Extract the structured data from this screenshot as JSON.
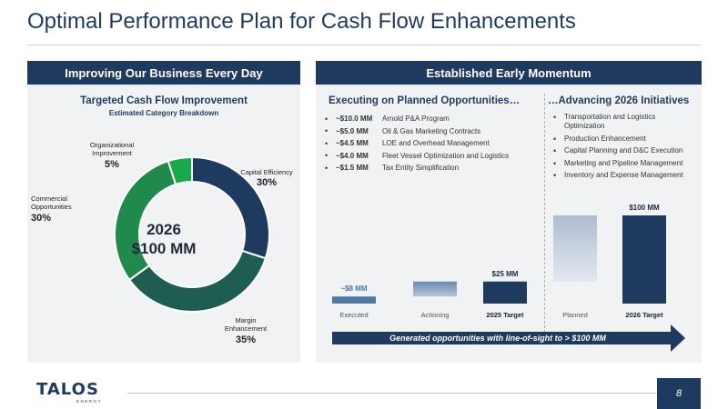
{
  "title": "Optimal Performance Plan for Cash Flow Enhancements",
  "left_panel": {
    "header": "Improving Our Business Every Day",
    "chart_title": "Targeted Cash Flow Improvement",
    "chart_subtitle": "Estimated Category Breakdown",
    "center_year": "2026",
    "center_value": "$100 MM"
  },
  "right_panel": {
    "header": "Established Early Momentum",
    "left_heading": "Executing on Planned Opportunities…",
    "right_heading": "…Advancing 2026 Initiatives",
    "opportunities": [
      {
        "amount": "~$10.0 MM",
        "label": "Arnold P&A Program"
      },
      {
        "amount": "~$5.0 MM",
        "label": "Oil & Gas Marketing Contracts"
      },
      {
        "amount": "~$4.5 MM",
        "label": "LOE and Overhead Management"
      },
      {
        "amount": "~$4.0 MM",
        "label": "Fleet Vessel Optimization and Logistics"
      },
      {
        "amount": "~$1.5 MM",
        "label": "Tax Entity Simplification"
      }
    ],
    "initiatives": [
      "Transportation and Logistics Optimization",
      "Production Enhancement",
      "Capital Planning and D&C Execution",
      "Marketing and Pipeline Management",
      "Inventory and Expense Management"
    ],
    "arrow_text": "Generated opportunities with line-of-sight to > $100 MM"
  },
  "chart_data": [
    {
      "type": "pie",
      "title": "Targeted Cash Flow Improvement",
      "subtitle": "Estimated Category Breakdown",
      "categories": [
        "Capital Efficiency",
        "Margin Enhancement",
        "Commercial Opportunities",
        "Organizational Improvement"
      ],
      "values": [
        30,
        35,
        30,
        5
      ],
      "labels": [
        "30%",
        "35%",
        "30%",
        "5%"
      ],
      "colors": [
        "#1f3a5f",
        "#1e5d52",
        "#1f8a4c",
        "#19a84c"
      ]
    },
    {
      "type": "bar",
      "categories": [
        "Executed",
        "Actioning",
        "2025 Target",
        "Planned",
        "2026 Target"
      ],
      "bold_categories": [
        "2025 Target",
        "2026 Target"
      ],
      "value_labels": [
        "~$8 MM",
        "",
        "$25 MM",
        "",
        "$100 MM"
      ],
      "value_label_colors": [
        "#4a78a8",
        "",
        "#1f2a3a",
        "",
        "#1f2a3a"
      ],
      "bars": [
        {
          "base": 0,
          "top": 8
        },
        {
          "base": 8,
          "top": 25
        },
        {
          "base": 0,
          "top": 25
        },
        {
          "base": 25,
          "top": 100
        },
        {
          "base": 0,
          "top": 100
        }
      ],
      "colors": [
        "#4f7aa5",
        "#8aa3c0",
        "#1f3a5f",
        "#c7d0dd",
        "#1f3a5f"
      ]
    }
  ],
  "footer": {
    "logo_word": "TALOS",
    "logo_sub": "ENERGY",
    "page_number": "8"
  }
}
